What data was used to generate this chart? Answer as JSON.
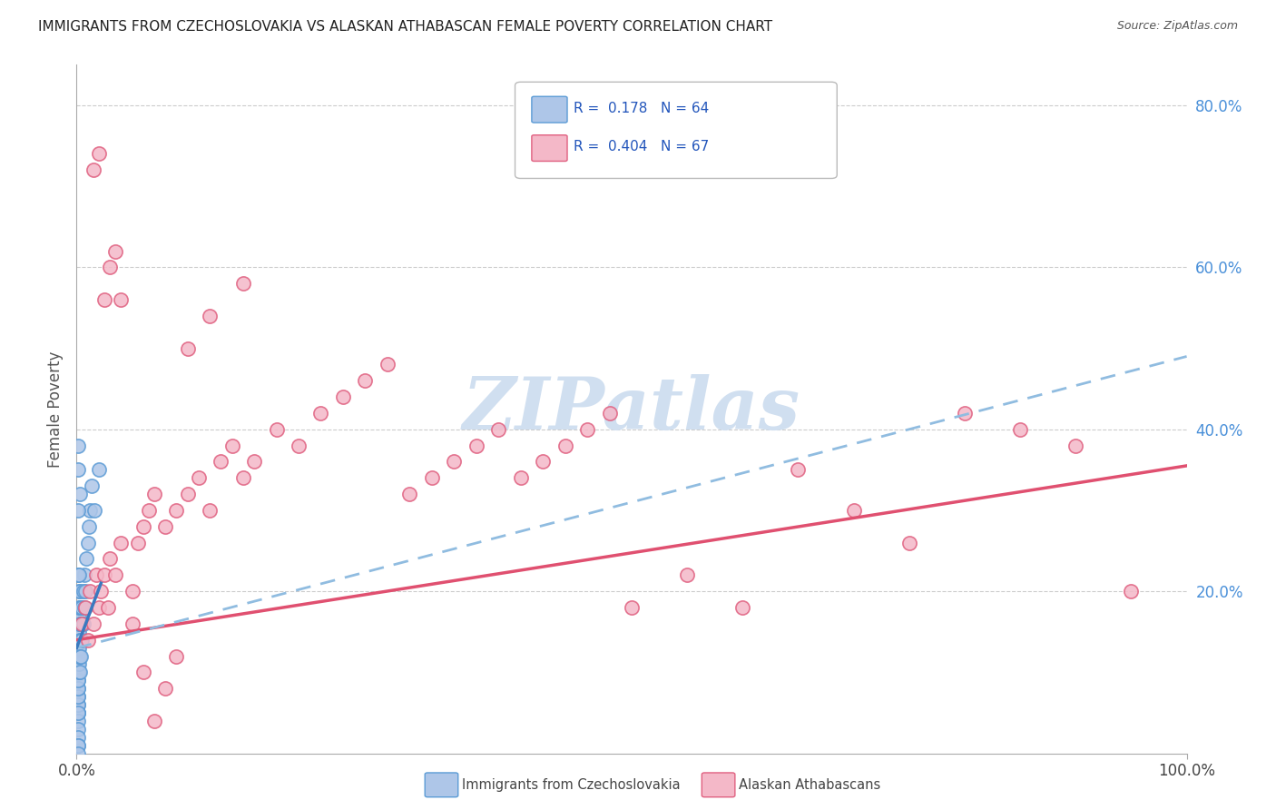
{
  "title": "IMMIGRANTS FROM CZECHOSLOVAKIA VS ALASKAN ATHABASCAN FEMALE POVERTY CORRELATION CHART",
  "source": "Source: ZipAtlas.com",
  "ylabel": "Female Poverty",
  "legend_label1": "Immigrants from Czechoslovakia",
  "legend_label2": "Alaskan Athabascans",
  "color_blue_fill": "#aec6e8",
  "color_blue_edge": "#5b9bd5",
  "color_pink_fill": "#f4b8c8",
  "color_pink_edge": "#e06080",
  "color_pink_line": "#e05070",
  "color_blue_line": "#3a7abf",
  "color_blue_dash": "#90bce0",
  "watermark_color": "#d0dff0",
  "blue_x": [
    0.001,
    0.001,
    0.001,
    0.001,
    0.001,
    0.001,
    0.001,
    0.001,
    0.001,
    0.001,
    0.001,
    0.001,
    0.001,
    0.001,
    0.001,
    0.001,
    0.001,
    0.001,
    0.001,
    0.001,
    0.002,
    0.002,
    0.002,
    0.002,
    0.002,
    0.002,
    0.002,
    0.002,
    0.002,
    0.002,
    0.003,
    0.003,
    0.003,
    0.003,
    0.003,
    0.003,
    0.004,
    0.004,
    0.004,
    0.004,
    0.005,
    0.005,
    0.005,
    0.006,
    0.006,
    0.007,
    0.007,
    0.008,
    0.009,
    0.01,
    0.011,
    0.012,
    0.014,
    0.016,
    0.02,
    0.001,
    0.001,
    0.001,
    0.001,
    0.001,
    0.001,
    0.001,
    0.002,
    0.003
  ],
  "blue_y": [
    0.05,
    0.06,
    0.07,
    0.08,
    0.09,
    0.1,
    0.11,
    0.12,
    0.13,
    0.14,
    0.15,
    0.05,
    0.04,
    0.03,
    0.02,
    0.01,
    0.06,
    0.07,
    0.08,
    0.09,
    0.1,
    0.11,
    0.12,
    0.13,
    0.14,
    0.15,
    0.16,
    0.17,
    0.18,
    0.2,
    0.1,
    0.12,
    0.14,
    0.16,
    0.18,
    0.2,
    0.12,
    0.14,
    0.16,
    0.18,
    0.14,
    0.16,
    0.18,
    0.16,
    0.2,
    0.18,
    0.22,
    0.2,
    0.24,
    0.26,
    0.28,
    0.3,
    0.33,
    0.3,
    0.35,
    0.35,
    0.38,
    0.22,
    0.3,
    0.05,
    0.01,
    0.0,
    0.22,
    0.32
  ],
  "pink_x": [
    0.005,
    0.008,
    0.01,
    0.012,
    0.015,
    0.018,
    0.02,
    0.022,
    0.025,
    0.028,
    0.03,
    0.035,
    0.04,
    0.05,
    0.055,
    0.06,
    0.065,
    0.07,
    0.08,
    0.09,
    0.1,
    0.11,
    0.12,
    0.13,
    0.14,
    0.15,
    0.16,
    0.18,
    0.2,
    0.22,
    0.24,
    0.26,
    0.28,
    0.3,
    0.32,
    0.34,
    0.36,
    0.38,
    0.4,
    0.42,
    0.44,
    0.46,
    0.48,
    0.5,
    0.55,
    0.6,
    0.65,
    0.7,
    0.75,
    0.8,
    0.85,
    0.9,
    0.95,
    0.015,
    0.02,
    0.025,
    0.03,
    0.035,
    0.04,
    0.05,
    0.06,
    0.07,
    0.08,
    0.09,
    0.1,
    0.12,
    0.15
  ],
  "pink_y": [
    0.16,
    0.18,
    0.14,
    0.2,
    0.16,
    0.22,
    0.18,
    0.2,
    0.22,
    0.18,
    0.24,
    0.22,
    0.26,
    0.2,
    0.26,
    0.28,
    0.3,
    0.32,
    0.28,
    0.3,
    0.32,
    0.34,
    0.3,
    0.36,
    0.38,
    0.34,
    0.36,
    0.4,
    0.38,
    0.42,
    0.44,
    0.46,
    0.48,
    0.32,
    0.34,
    0.36,
    0.38,
    0.4,
    0.34,
    0.36,
    0.38,
    0.4,
    0.42,
    0.18,
    0.22,
    0.18,
    0.35,
    0.3,
    0.26,
    0.42,
    0.4,
    0.38,
    0.2,
    0.72,
    0.74,
    0.56,
    0.6,
    0.62,
    0.56,
    0.16,
    0.1,
    0.04,
    0.08,
    0.12,
    0.5,
    0.54,
    0.58
  ]
}
